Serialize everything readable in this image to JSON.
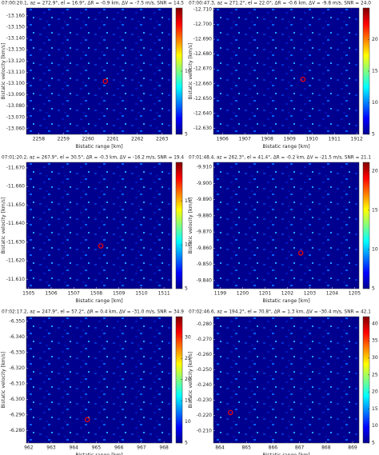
{
  "chart_data": [
    {
      "type": "heatmap",
      "title": "07:00:20.1, az = 272.9°, el = 16.9°, ΔR = -0.9 km, ΔV = -7.5 m/s, SNR = 14.5",
      "xlabel": "Bistatic range [km]",
      "ylabel": "Bistatic velocity [km/s]",
      "xlim": [
        2257.5,
        2263.4
      ],
      "xticks": [
        2258,
        2259,
        2260,
        2261,
        2262,
        2263
      ],
      "ylim": [
        -13.055,
        -13.167
      ],
      "yticks": [
        {
          "value": -13.16,
          "label": "-13.160"
        },
        {
          "value": -13.15,
          "label": "-13.150"
        },
        {
          "value": -13.14,
          "label": "-13.140"
        },
        {
          "value": -13.13,
          "label": "-13.130"
        },
        {
          "value": -13.12,
          "label": "-13.120"
        },
        {
          "value": -13.11,
          "label": "-13.110"
        },
        {
          "value": -13.1,
          "label": "-13.100"
        },
        {
          "value": -13.09,
          "label": "-13.090"
        },
        {
          "value": -13.08,
          "label": "-13.080"
        },
        {
          "value": -13.07,
          "label": "-13.070"
        },
        {
          "value": -13.06,
          "label": "-13.060"
        }
      ],
      "clim": [
        5,
        15
      ],
      "cticks": [
        5,
        10
      ],
      "colormap": "jet",
      "marker": {
        "x": 2260.7,
        "y": -13.102,
        "color": "#ff0000"
      }
    },
    {
      "type": "heatmap",
      "title": "07:00:47.3, az = 271.2°, el = 22.0°, ΔR = -0.6 km, ΔV = -9.8 m/s, SNR = 24.0",
      "xlabel": "Bistatic range [km]",
      "ylabel": "Bistatic velocity [km/s]",
      "xlim": [
        1905.6,
        1912.1
      ],
      "xticks": [
        1906,
        1907,
        1908,
        1909,
        1910,
        1911,
        1912
      ],
      "ylim": [
        -12.626,
        -12.711
      ],
      "yticks": [
        {
          "value": -12.71,
          "label": "-12.710"
        },
        {
          "value": -12.7,
          "label": "-12.700"
        },
        {
          "value": -12.69,
          "label": "-12.690"
        },
        {
          "value": -12.68,
          "label": "-12.680"
        },
        {
          "value": -12.67,
          "label": "-12.670"
        },
        {
          "value": -12.66,
          "label": "-12.660"
        },
        {
          "value": -12.65,
          "label": "-12.650"
        },
        {
          "value": -12.64,
          "label": "-12.640"
        },
        {
          "value": -12.63,
          "label": "-12.630"
        }
      ],
      "clim": [
        5,
        25
      ],
      "cticks": [
        5,
        10,
        15,
        20
      ],
      "colormap": "jet",
      "marker": {
        "x": 1909.6,
        "y": -12.663,
        "color": "#ff0000"
      }
    },
    {
      "type": "heatmap",
      "title": "07:01:20.2, az = 267.9°, el = 30.5°, ΔR = -0.3 km, ΔV = -16.2 m/s, SNR = 19.4",
      "xlabel": "Bistatic range [km]",
      "ylabel": "Bistatic velocity [km/s]",
      "xlim": [
        1504.9,
        1511.35
      ],
      "xticks": [
        1505,
        1506,
        1507,
        1508,
        1509,
        1510,
        1511
      ],
      "ylim": [
        -11.605,
        -11.673
      ],
      "yticks": [
        {
          "value": -11.67,
          "label": "-11.670"
        },
        {
          "value": -11.66,
          "label": "-11.660"
        },
        {
          "value": -11.65,
          "label": "-11.650"
        },
        {
          "value": -11.64,
          "label": "-11.640"
        },
        {
          "value": -11.63,
          "label": "-11.630"
        },
        {
          "value": -11.62,
          "label": "-11.620"
        },
        {
          "value": -11.61,
          "label": "-11.610"
        }
      ],
      "clim": [
        5,
        19.4
      ],
      "cticks": [
        5,
        10,
        15
      ],
      "colormap": "jet",
      "marker": {
        "x": 1508.2,
        "y": -11.628,
        "color": "#ff0000"
      }
    },
    {
      "type": "heatmap",
      "title": "07:01:48.4, az = 262.3°, el = 41.4°, ΔR = -0.2 km, ΔV = -21.5 m/s, SNR = 21.1",
      "xlabel": "Bistatic range [km]",
      "ylabel": "Bistatic velocity [km/s]",
      "xlim": [
        1198.7,
        1205.2
      ],
      "xticks": [
        1199,
        1200,
        1201,
        1202,
        1203,
        1204,
        1205
      ],
      "ylim": [
        -9.835,
        -9.913
      ],
      "yticks": [
        {
          "value": -9.91,
          "label": "-9.910"
        },
        {
          "value": -9.9,
          "label": "-9.900"
        },
        {
          "value": -9.89,
          "label": "-9.890"
        },
        {
          "value": -9.88,
          "label": "-9.880"
        },
        {
          "value": -9.87,
          "label": "-9.870"
        },
        {
          "value": -9.86,
          "label": "-9.860"
        },
        {
          "value": -9.85,
          "label": "-9.850"
        },
        {
          "value": -9.84,
          "label": "-9.840"
        }
      ],
      "clim": [
        5,
        21.1
      ],
      "cticks": [
        5,
        10,
        15,
        20
      ],
      "colormap": "jet",
      "marker": {
        "x": 1202.6,
        "y": -9.857,
        "color": "#ff0000"
      }
    },
    {
      "type": "heatmap",
      "title": "07:02:17.2, az = 247.9°, el = 57.2°, ΔR = 0.4 km, ΔV = -31.0 m/s, SNR = 34.9",
      "xlabel": "Bistatic range [km]",
      "ylabel": "Bistatic velocity [km/s]",
      "xlim": [
        961.9,
        968.35
      ],
      "xticks": [
        962,
        963,
        964,
        965,
        966,
        967,
        968
      ],
      "ylim": [
        -6.272,
        -6.353
      ],
      "yticks": [
        {
          "value": -6.35,
          "label": "-6.350"
        },
        {
          "value": -6.34,
          "label": "-6.340"
        },
        {
          "value": -6.33,
          "label": "-6.330"
        },
        {
          "value": -6.32,
          "label": "-6.320"
        },
        {
          "value": -6.31,
          "label": "-6.310"
        },
        {
          "value": -6.3,
          "label": "-6.300"
        },
        {
          "value": -6.29,
          "label": "-6.290"
        },
        {
          "value": -6.28,
          "label": "-6.280"
        }
      ],
      "clim": [
        5,
        34.9
      ],
      "cticks": [
        5,
        10,
        15,
        20,
        25,
        30
      ],
      "colormap": "jet",
      "marker": {
        "x": 964.6,
        "y": -6.287,
        "color": "#ff0000"
      }
    },
    {
      "type": "heatmap",
      "title": "07:02:46.6, az = 194.2°, el = 70.8°, ΔR = 1.3 km, ΔV = -30.4 m/s, SNR = 42.1",
      "xlabel": "Bistatic range [km]",
      "ylabel": "Bistatic velocity [km/s]",
      "xlim": [
        863.76,
        869.24
      ],
      "xticks": [
        864,
        865,
        866,
        867,
        868,
        869
      ],
      "ylim": [
        -0.202,
        -0.285
      ],
      "yticks": [
        {
          "value": -0.28,
          "label": "-0.280"
        },
        {
          "value": -0.27,
          "label": "-0.270"
        },
        {
          "value": -0.26,
          "label": "-0.260"
        },
        {
          "value": -0.25,
          "label": "-0.250"
        },
        {
          "value": -0.24,
          "label": "-0.240"
        },
        {
          "value": -0.23,
          "label": "-0.230"
        },
        {
          "value": -0.22,
          "label": "-0.220"
        },
        {
          "value": -0.21,
          "label": "-0.210"
        }
      ],
      "clim": [
        5,
        42.1
      ],
      "cticks": [
        5,
        10,
        15,
        20,
        25,
        30,
        35,
        40
      ],
      "colormap": "jet",
      "marker": {
        "x": 864.4,
        "y": -0.222,
        "color": "#ff0000"
      }
    }
  ]
}
